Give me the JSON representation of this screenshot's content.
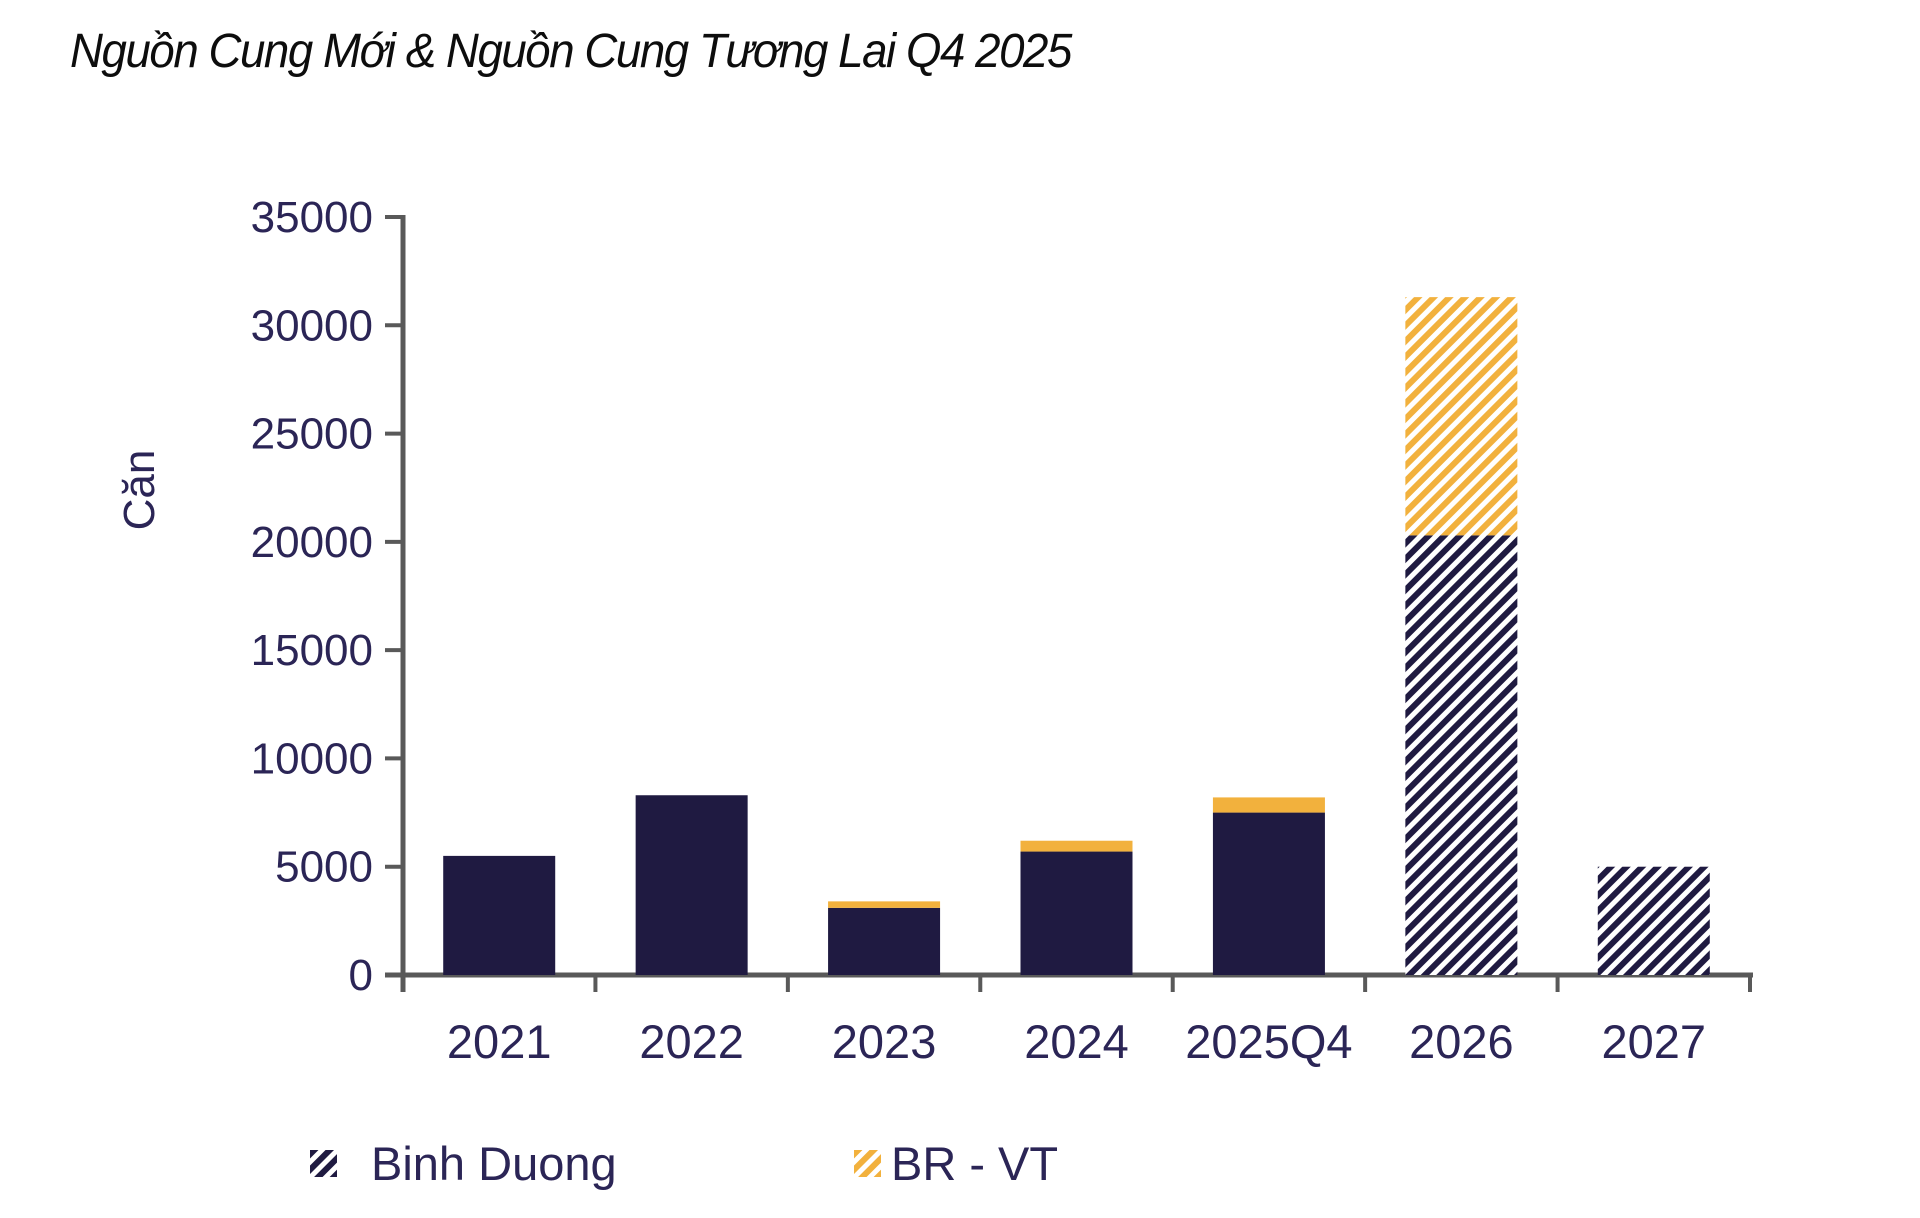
{
  "title": "Nguồn Cung Mới & Nguồn Cung Tương Lai Q4 2025",
  "chart_data": {
    "type": "bar",
    "stacked": true,
    "title": "Nguồn Cung Mới & Nguồn Cung Tương Lai Q4 2025",
    "xlabel": "",
    "ylabel": "Căn",
    "categories": [
      "2021",
      "2022",
      "2023",
      "2024",
      "2025Q4",
      "2026",
      "2027"
    ],
    "series": [
      {
        "name": "Binh Duong",
        "color": "#1f1a41",
        "values": [
          5500,
          8300,
          3100,
          5700,
          7500,
          20300,
          5000
        ]
      },
      {
        "name": "BR - VT",
        "color": "#f2b13d",
        "values": [
          0,
          0,
          300,
          500,
          700,
          11000,
          0
        ]
      }
    ],
    "hatched_categories": [
      "2026",
      "2027"
    ],
    "solid_fill_note": "2021-2025Q4 bars solid (new supply); 2026-2027 bars diagonal-hatched (future supply)",
    "ylim": [
      0,
      35000
    ],
    "ytick_step": 5000,
    "ytick_labels": [
      "0",
      "5000",
      "10000",
      "15000",
      "20000",
      "25000",
      "30000",
      "35000"
    ],
    "grid": false,
    "legend_position": "bottom",
    "legend": [
      {
        "label": "Binh Duong",
        "color": "#1f1a41",
        "swatch": "diagonal-hatch"
      },
      {
        "label": "BR - VT",
        "color": "#f2b13d",
        "swatch": "diagonal-hatch"
      }
    ],
    "colors": {
      "binh_duong": "#1f1a41",
      "br_vt": "#f2b13d",
      "axis_line": "#595959",
      "tick_text": "#2b2556",
      "title_text": "#0d0d0d"
    }
  }
}
